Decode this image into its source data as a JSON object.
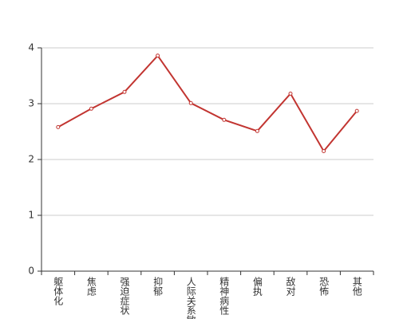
{
  "chart_data": {
    "type": "line",
    "categories": [
      "躯体化",
      "焦虑",
      "强迫症状",
      "抑郁",
      "人际关系敏感",
      "精神病性",
      "偏执",
      "敌对",
      "恐怖",
      "其他"
    ],
    "series": [
      {
        "color": "#c23531",
        "values": [
          2.58,
          2.91,
          3.21,
          3.86,
          3.01,
          2.71,
          2.51,
          3.18,
          2.15,
          2.87
        ]
      }
    ],
    "ylim": [
      0,
      4
    ],
    "yticks": [
      0,
      1,
      2,
      3,
      4
    ],
    "grid": true
  }
}
